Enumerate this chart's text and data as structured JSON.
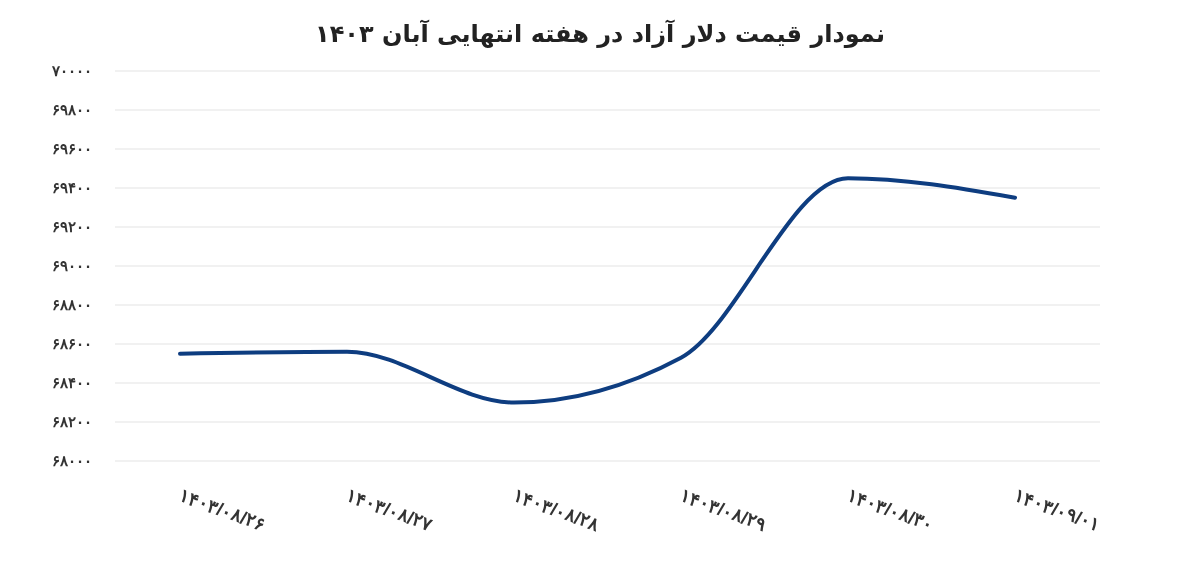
{
  "chart_data": {
    "type": "line",
    "title": "نمودار قیمت دلار آزاد در هفته انتهایی آبان ۱۴۰۳",
    "categories": [
      "۱۴۰۳/۰۸/۲۶",
      "۱۴۰۳/۰۸/۲۷",
      "۱۴۰۳/۰۸/۲۸",
      "۱۴۰۳/۰۸/۲۹",
      "۱۴۰۳/۰۸/۳۰",
      "۱۴۰۳/۰۹/۰۱"
    ],
    "series": [
      {
        "color": "#0e3d80",
        "values": [
          68550,
          68560,
          68300,
          68530,
          69450,
          69350
        ]
      }
    ],
    "ylim": [
      68000,
      70000
    ],
    "yticks": [
      {
        "value": 68000,
        "label": "۶۸۰۰۰"
      },
      {
        "value": 68200,
        "label": "۶۸۲۰۰"
      },
      {
        "value": 68400,
        "label": "۶۸۴۰۰"
      },
      {
        "value": 68600,
        "label": "۶۸۶۰۰"
      },
      {
        "value": 68800,
        "label": "۶۸۸۰۰"
      },
      {
        "value": 69000,
        "label": "۶۹۰۰۰"
      },
      {
        "value": 69200,
        "label": "۶۹۲۰۰"
      },
      {
        "value": 69400,
        "label": "۶۹۴۰۰"
      },
      {
        "value": 69600,
        "label": "۶۹۶۰۰"
      },
      {
        "value": 69800,
        "label": "۶۹۸۰۰"
      },
      {
        "value": 70000,
        "label": "۷۰۰۰۰"
      }
    ],
    "grid": "y",
    "marker": "none",
    "line_style": "solid"
  }
}
